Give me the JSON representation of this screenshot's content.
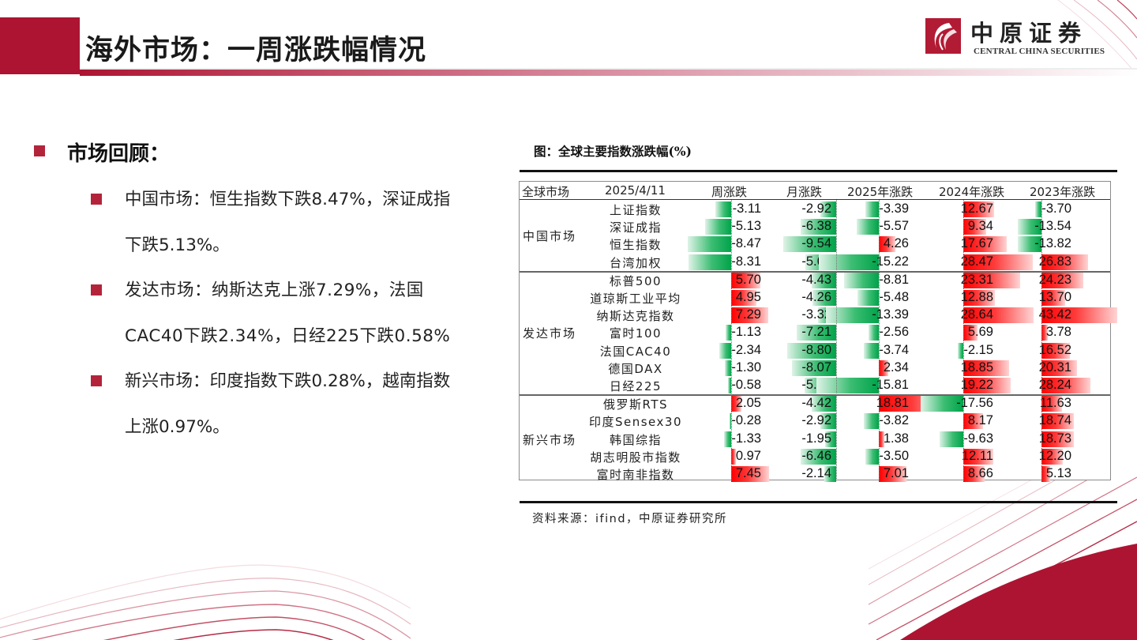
{
  "header": {
    "title": "海外市场：一周涨跌幅情况",
    "logo": {
      "cn": "中原证券",
      "en": "CENTRAL CHINA SECURITIES"
    }
  },
  "colors": {
    "brand_red": "#ad1432",
    "bullet_red": "#b3243b",
    "up_red": "#ff0000",
    "down_green": "#00a34a"
  },
  "left": {
    "section_title": "市场回顾：",
    "bullets": [
      {
        "lines": [
          "中国市场：恒生指数下跌8.47%，深证成指",
          "下跌5.13%。"
        ]
      },
      {
        "lines": [
          "发达市场：纳斯达克上涨7.29%，法国",
          "CAC40下跌2.34%，日经225下跌0.58%"
        ]
      },
      {
        "lines": [
          "新兴市场：印度指数下跌0.28%，越南指数",
          "上涨0.97%。"
        ]
      }
    ]
  },
  "figure": {
    "title": "图：全球主要指数涨跌幅(%)",
    "source": "资料来源：ifind，中原证券研究所"
  },
  "chart_data": {
    "type": "table",
    "title": "全球主要指数涨跌幅(%)",
    "columns": [
      "全球市场",
      "2025/4/11",
      "周涨跌",
      "月涨跌",
      "2025年涨跌",
      "2024年涨跌",
      "2023年涨跌"
    ],
    "groups": [
      {
        "market": "中国市场",
        "rows": [
          {
            "name": "上证指数",
            "values": [
              -3.11,
              -2.92,
              -3.39,
              12.67,
              -3.7
            ]
          },
          {
            "name": "深证成指",
            "values": [
              -5.13,
              -6.38,
              -5.57,
              9.34,
              -13.54
            ]
          },
          {
            "name": "恒生指数",
            "values": [
              -8.47,
              -9.54,
              4.26,
              17.67,
              -13.82
            ]
          },
          {
            "name": "台湾加权",
            "values": [
              -8.31,
              -5.64,
              -15.22,
              28.47,
              26.83
            ]
          }
        ]
      },
      {
        "market": "发达市场",
        "rows": [
          {
            "name": "标普500",
            "values": [
              5.7,
              -4.43,
              -8.81,
              23.31,
              24.23
            ]
          },
          {
            "name": "道琼斯工业平均",
            "values": [
              4.95,
              -4.26,
              -5.48,
              12.88,
              13.7
            ]
          },
          {
            "name": "纳斯达克指数",
            "values": [
              7.29,
              -3.32,
              -13.39,
              28.64,
              43.42
            ]
          },
          {
            "name": "富时100",
            "values": [
              -1.13,
              -7.21,
              -2.56,
              5.69,
              3.78
            ]
          },
          {
            "name": "法国CAC40",
            "values": [
              -2.34,
              -8.8,
              -3.74,
              -2.15,
              16.52
            ]
          },
          {
            "name": "德国DAX",
            "values": [
              -1.3,
              -8.07,
              2.34,
              18.85,
              20.31
            ]
          },
          {
            "name": "日经225",
            "values": [
              -0.58,
              -5.7,
              -15.81,
              19.22,
              28.24
            ]
          }
        ]
      },
      {
        "market": "新兴市场",
        "rows": [
          {
            "name": "俄罗斯RTS",
            "values": [
              2.05,
              -4.42,
              18.81,
              -17.56,
              11.63
            ]
          },
          {
            "name": "印度Sensex30",
            "values": [
              -0.28,
              -2.92,
              -3.82,
              8.17,
              18.74
            ]
          },
          {
            "name": "韩国综指",
            "values": [
              -1.33,
              -1.95,
              1.38,
              -9.63,
              18.73
            ]
          },
          {
            "name": "胡志明股市指数",
            "values": [
              0.97,
              -6.46,
              -3.5,
              12.11,
              12.2
            ]
          },
          {
            "name": "富时南非指数",
            "values": [
              7.45,
              -2.14,
              7.01,
              8.66,
              5.13
            ]
          }
        ]
      }
    ],
    "bar_encoding": {
      "positive": "red data bar",
      "negative": "green data bar"
    }
  }
}
